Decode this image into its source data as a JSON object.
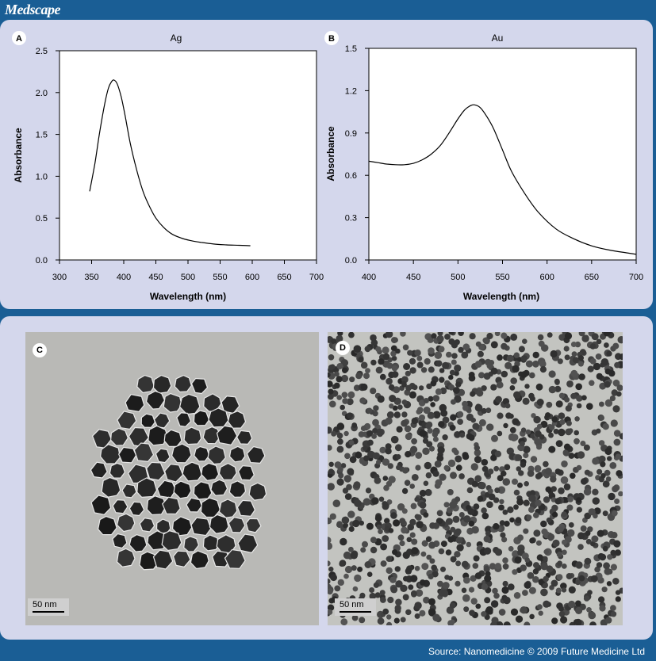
{
  "header": {
    "brand": "Medscape"
  },
  "footer": {
    "source": "Source: Nanomedicine © 2009 Future Medicine Ltd"
  },
  "chart_data": [
    {
      "type": "line",
      "panel": "A",
      "title": "Ag",
      "xlabel": "Wavelength (nm)",
      "ylabel": "Absorbance",
      "xlim": [
        300,
        700
      ],
      "ylim": [
        0,
        2.5
      ],
      "xticks": [
        "300",
        "350",
        "400",
        "450",
        "500",
        "550",
        "600",
        "650",
        "700"
      ],
      "yticks": [
        "0.0",
        "0.5",
        "1.0",
        "1.5",
        "2.0",
        "2.5"
      ],
      "grid": false,
      "series": [
        {
          "x": [
            347,
            355,
            362,
            370,
            376,
            381,
            385,
            390,
            396,
            402,
            410,
            420,
            430,
            440,
            450,
            462,
            475,
            490,
            505,
            520,
            540,
            560,
            580,
            597
          ],
          "y": [
            0.82,
            1.15,
            1.5,
            1.85,
            2.05,
            2.13,
            2.15,
            2.1,
            1.95,
            1.73,
            1.4,
            1.08,
            0.82,
            0.64,
            0.5,
            0.39,
            0.31,
            0.26,
            0.23,
            0.21,
            0.19,
            0.18,
            0.175,
            0.17
          ]
        }
      ]
    },
    {
      "type": "line",
      "panel": "B",
      "title": "Au",
      "xlabel": "Wavelength (nm)",
      "ylabel": "Absorbance",
      "xlim": [
        400,
        700
      ],
      "ylim": [
        0,
        1.5
      ],
      "xticks": [
        "400",
        "450",
        "500",
        "550",
        "600",
        "650",
        "700"
      ],
      "yticks": [
        "0.0",
        "0.3",
        "0.6",
        "0.9",
        "1.2",
        "1.5"
      ],
      "grid": false,
      "series": [
        {
          "x": [
            400,
            410,
            420,
            430,
            440,
            450,
            460,
            470,
            480,
            490,
            500,
            507,
            513,
            518,
            525,
            532,
            540,
            550,
            560,
            575,
            590,
            610,
            630,
            650,
            670,
            690,
            700
          ],
          "y": [
            0.7,
            0.69,
            0.68,
            0.675,
            0.675,
            0.685,
            0.71,
            0.75,
            0.81,
            0.9,
            1.0,
            1.06,
            1.09,
            1.1,
            1.08,
            1.02,
            0.93,
            0.78,
            0.63,
            0.47,
            0.34,
            0.22,
            0.15,
            0.1,
            0.07,
            0.05,
            0.04
          ]
        }
      ]
    }
  ],
  "micrographs": [
    {
      "label": "C",
      "scale": "50 nm"
    },
    {
      "label": "D",
      "scale": "50 nm"
    }
  ]
}
